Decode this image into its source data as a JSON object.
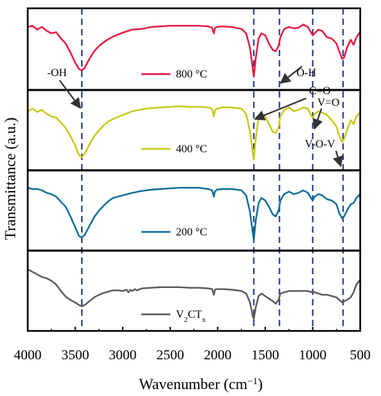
{
  "chart_data": {
    "type": "line",
    "xlabel": "Wavenumber (cm⁻¹)",
    "ylabel": "Transmittance (a.u.)",
    "xlim": [
      4000,
      500
    ],
    "x_ticks": [
      "4000",
      "3500",
      "3000",
      "2500",
      "2000",
      "1500",
      "1000",
      "500"
    ],
    "x_tick_values": [
      4000,
      3500,
      3000,
      2500,
      2000,
      1500,
      1000,
      500
    ],
    "reference_lines": [
      3430,
      1620,
      1350,
      1000,
      680
    ],
    "panels": [
      {
        "legend": "800 °C",
        "color": "#e8173f",
        "x": [
          4000,
          3950,
          3900,
          3850,
          3800,
          3750,
          3700,
          3650,
          3600,
          3550,
          3500,
          3460,
          3430,
          3400,
          3350,
          3300,
          3250,
          3200,
          3150,
          3100,
          3000,
          2900,
          2800,
          2700,
          2600,
          2500,
          2400,
          2300,
          2200,
          2100,
          2060,
          2040,
          2030,
          2010,
          1950,
          1850,
          1750,
          1700,
          1660,
          1630,
          1620,
          1600,
          1570,
          1540,
          1500,
          1460,
          1420,
          1390,
          1360,
          1340,
          1300,
          1250,
          1200,
          1150,
          1100,
          1050,
          1020,
          1000,
          980,
          940,
          900,
          850,
          800,
          750,
          720,
          690,
          670,
          640,
          600,
          570,
          540,
          500
        ],
        "y": [
          0.12,
          0.1,
          0.16,
          0.12,
          0.18,
          0.22,
          0.2,
          0.3,
          0.38,
          0.52,
          0.68,
          0.78,
          0.8,
          0.76,
          0.62,
          0.5,
          0.42,
          0.36,
          0.31,
          0.27,
          0.21,
          0.16,
          0.15,
          0.12,
          0.11,
          0.1,
          0.1,
          0.1,
          0.1,
          0.11,
          0.13,
          0.22,
          0.14,
          0.12,
          0.11,
          0.12,
          0.15,
          0.22,
          0.45,
          0.78,
          0.9,
          0.62,
          0.3,
          0.22,
          0.25,
          0.38,
          0.48,
          0.5,
          0.42,
          0.28,
          0.15,
          0.12,
          0.14,
          0.13,
          0.08,
          0.12,
          0.2,
          0.25,
          0.22,
          0.16,
          0.18,
          0.28,
          0.3,
          0.38,
          0.5,
          0.62,
          0.6,
          0.45,
          0.32,
          0.4,
          0.28,
          0.2
        ]
      },
      {
        "legend": "400 °C",
        "color": "#c8c818",
        "x": [
          4000,
          3950,
          3900,
          3850,
          3800,
          3750,
          3700,
          3650,
          3600,
          3550,
          3500,
          3460,
          3430,
          3400,
          3350,
          3300,
          3250,
          3200,
          3150,
          3100,
          3000,
          2900,
          2800,
          2700,
          2600,
          2500,
          2400,
          2300,
          2200,
          2100,
          2060,
          2040,
          2030,
          2010,
          1950,
          1850,
          1750,
          1700,
          1660,
          1630,
          1620,
          1600,
          1570,
          1540,
          1500,
          1460,
          1420,
          1390,
          1360,
          1340,
          1300,
          1250,
          1200,
          1150,
          1100,
          1050,
          1020,
          1000,
          980,
          940,
          900,
          850,
          800,
          750,
          720,
          690,
          670,
          640,
          600,
          570,
          540,
          500
        ],
        "y": [
          0.16,
          0.12,
          0.17,
          0.14,
          0.2,
          0.24,
          0.26,
          0.34,
          0.42,
          0.55,
          0.7,
          0.85,
          0.88,
          0.82,
          0.68,
          0.55,
          0.46,
          0.38,
          0.32,
          0.28,
          0.22,
          0.16,
          0.13,
          0.11,
          0.1,
          0.09,
          0.08,
          0.09,
          0.09,
          0.1,
          0.12,
          0.24,
          0.14,
          0.12,
          0.1,
          0.1,
          0.12,
          0.2,
          0.48,
          0.82,
          0.92,
          0.6,
          0.26,
          0.2,
          0.24,
          0.36,
          0.48,
          0.5,
          0.42,
          0.24,
          0.14,
          0.1,
          0.16,
          0.14,
          0.1,
          0.12,
          0.22,
          0.26,
          0.2,
          0.16,
          0.18,
          0.22,
          0.3,
          0.4,
          0.55,
          0.64,
          0.6,
          0.46,
          0.3,
          0.36,
          0.24,
          0.18
        ]
      },
      {
        "legend": "200 °C",
        "color": "#0e6e9c",
        "x": [
          4000,
          3950,
          3900,
          3850,
          3800,
          3750,
          3700,
          3650,
          3600,
          3550,
          3500,
          3460,
          3430,
          3400,
          3350,
          3300,
          3250,
          3200,
          3150,
          3100,
          3000,
          2900,
          2800,
          2700,
          2600,
          2500,
          2400,
          2300,
          2200,
          2100,
          2060,
          2040,
          2030,
          2010,
          1950,
          1850,
          1750,
          1700,
          1660,
          1630,
          1620,
          1600,
          1570,
          1540,
          1500,
          1460,
          1420,
          1390,
          1360,
          1340,
          1300,
          1250,
          1200,
          1150,
          1100,
          1050,
          1020,
          1000,
          980,
          940,
          900,
          850,
          800,
          750,
          720,
          690,
          670,
          640,
          600,
          570,
          540,
          500
        ],
        "y": [
          0.1,
          0.12,
          0.12,
          0.14,
          0.18,
          0.2,
          0.24,
          0.32,
          0.4,
          0.55,
          0.72,
          0.86,
          0.88,
          0.84,
          0.7,
          0.56,
          0.46,
          0.38,
          0.31,
          0.26,
          0.22,
          0.18,
          0.15,
          0.13,
          0.12,
          0.11,
          0.1,
          0.1,
          0.1,
          0.12,
          0.14,
          0.24,
          0.16,
          0.13,
          0.12,
          0.12,
          0.14,
          0.22,
          0.48,
          0.82,
          0.92,
          0.62,
          0.34,
          0.26,
          0.3,
          0.4,
          0.52,
          0.55,
          0.46,
          0.3,
          0.2,
          0.16,
          0.2,
          0.18,
          0.14,
          0.18,
          0.26,
          0.3,
          0.24,
          0.2,
          0.22,
          0.28,
          0.3,
          0.36,
          0.5,
          0.58,
          0.55,
          0.46,
          0.36,
          0.34,
          0.26,
          0.2
        ]
      },
      {
        "legend": "V₂CTₓ",
        "legend_parts": [
          "V",
          "2",
          "CT",
          "x"
        ],
        "color": "#5a5a5a",
        "x": [
          4000,
          3950,
          3900,
          3850,
          3800,
          3750,
          3700,
          3650,
          3600,
          3550,
          3500,
          3460,
          3430,
          3400,
          3350,
          3300,
          3250,
          3200,
          3150,
          3100,
          3050,
          3000,
          2960,
          2940,
          2920,
          2900,
          2870,
          2850,
          2800,
          2700,
          2600,
          2500,
          2400,
          2300,
          2200,
          2100,
          2060,
          2040,
          2030,
          2010,
          1950,
          1850,
          1750,
          1700,
          1660,
          1630,
          1620,
          1600,
          1570,
          1540,
          1500,
          1460,
          1420,
          1390,
          1360,
          1340,
          1300,
          1250,
          1200,
          1150,
          1100,
          1050,
          1020,
          1000,
          980,
          940,
          900,
          850,
          800,
          750,
          720,
          690,
          670,
          640,
          600,
          570,
          540,
          500
        ],
        "y": [
          0.12,
          0.16,
          0.2,
          0.24,
          0.26,
          0.3,
          0.36,
          0.46,
          0.55,
          0.6,
          0.64,
          0.68,
          0.7,
          0.68,
          0.62,
          0.56,
          0.52,
          0.49,
          0.47,
          0.45,
          0.45,
          0.46,
          0.44,
          0.48,
          0.44,
          0.46,
          0.43,
          0.45,
          0.42,
          0.41,
          0.4,
          0.4,
          0.4,
          0.41,
          0.41,
          0.42,
          0.43,
          0.52,
          0.44,
          0.43,
          0.43,
          0.44,
          0.46,
          0.5,
          0.64,
          0.86,
          0.9,
          0.72,
          0.54,
          0.5,
          0.54,
          0.58,
          0.62,
          0.66,
          0.6,
          0.5,
          0.48,
          0.46,
          0.46,
          0.46,
          0.46,
          0.46,
          0.48,
          0.46,
          0.48,
          0.5,
          0.52,
          0.52,
          0.54,
          0.56,
          0.6,
          0.64,
          0.62,
          0.6,
          0.56,
          0.48,
          0.36,
          0.28
        ]
      }
    ],
    "annotations": [
      {
        "text": "-OH",
        "target_x": 3430,
        "panel": 1
      },
      {
        "text": "O-H",
        "target_x": 1350,
        "panel": 0
      },
      {
        "text": "C=O",
        "target_x": 1620,
        "panel": 1
      },
      {
        "text": "V=O",
        "target_x": 1000,
        "panel": 1
      },
      {
        "text": "V-O-V",
        "target_x": 680,
        "panel": 2
      }
    ]
  }
}
